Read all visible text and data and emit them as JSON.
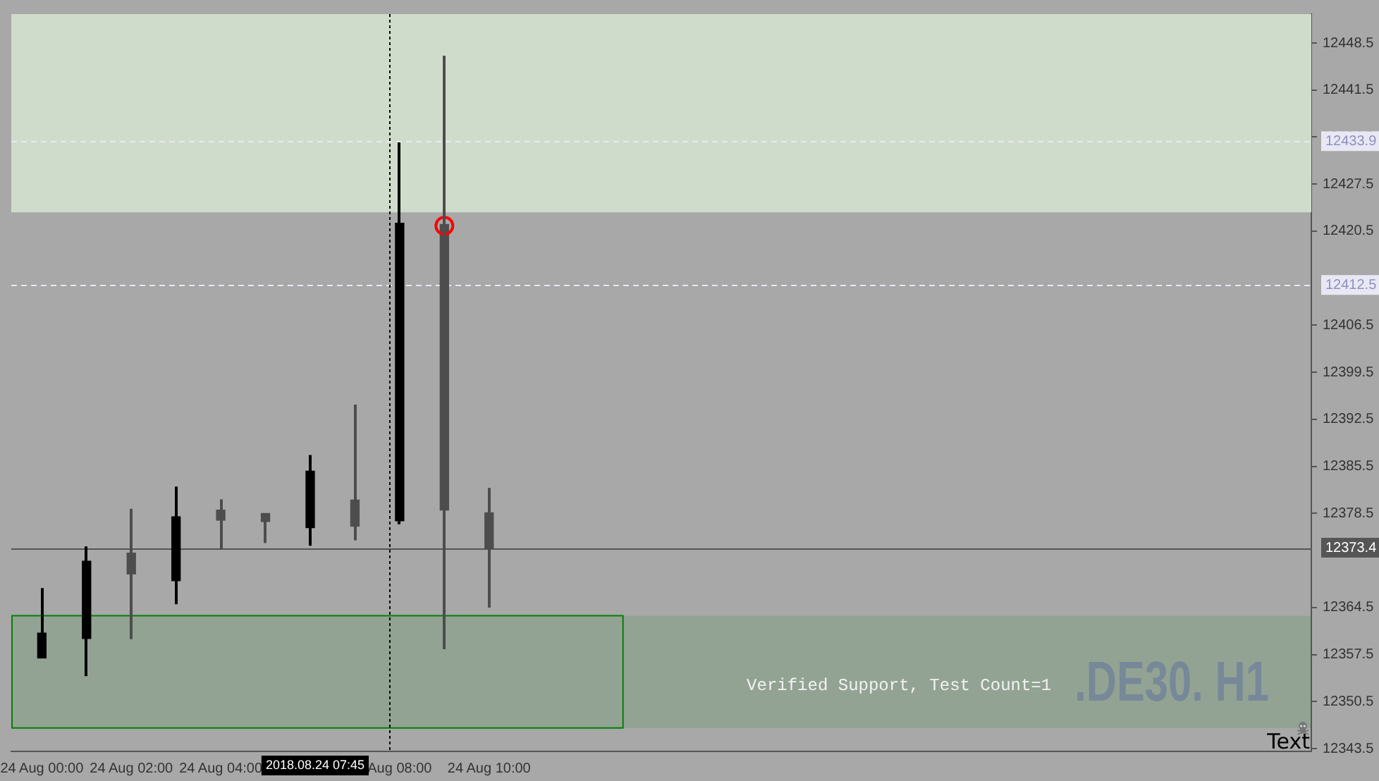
{
  "chart_data": {
    "type": "candlestick",
    "title": ".DE30. H1",
    "x": [
      "2018-08-24T00:00",
      "2018-08-24T01:00",
      "2018-08-24T02:00",
      "2018-08-24T03:00",
      "2018-08-24T04:00",
      "2018-08-24T05:00",
      "2018-08-24T06:00",
      "2018-08-24T07:00",
      "2018-08-24T08:00",
      "2018-08-24T09:00",
      "2018-08-24T10:00"
    ],
    "ohlc": [
      [
        12357.0,
        12367.4,
        12357.0,
        12360.7
      ],
      [
        12359.9,
        12373.6,
        12354.3,
        12371.4
      ],
      [
        12372.6,
        12379.2,
        12359.8,
        12369.5
      ],
      [
        12368.5,
        12382.5,
        12365.0,
        12378.0
      ],
      [
        12379.0,
        12380.6,
        12373.1,
        12377.5
      ],
      [
        12378.5,
        12378.5,
        12374.1,
        12377.3
      ],
      [
        12376.4,
        12387.2,
        12373.7,
        12384.8
      ],
      [
        12380.5,
        12394.7,
        12374.5,
        12376.6
      ],
      [
        12377.4,
        12433.7,
        12376.9,
        12421.7
      ],
      [
        12421.5,
        12446.6,
        12358.3,
        12379.0
      ],
      [
        12378.6,
        12382.3,
        12364.5,
        12373.3
      ]
    ],
    "colors": [
      "#000000",
      "#000000",
      "#4d4d4d",
      "#000000",
      "#4d4d4d",
      "#4d4d4d",
      "#000000",
      "#4d4d4d",
      "#000000",
      "#4d4d4d",
      "#4d4d4d"
    ],
    "series": [
      {
        "type": "scatter",
        "x": [
          "2018-08-24T09:00"
        ],
        "values": [
          12421.3
        ],
        "color": "#ff0000",
        "marker": "circle"
      }
    ],
    "xlim": [
      "2018-08-23T23:19",
      "2018-08-25T04:23"
    ],
    "xticks": [
      {
        "value": "2018-08-24T00:00",
        "label": "24 Aug 00:00"
      },
      {
        "value": "2018-08-24T02:00",
        "label": "24 Aug 02:00"
      },
      {
        "value": "2018-08-24T04:00",
        "label": "24 Aug 04:00"
      },
      {
        "value": "2018-08-24T08:00",
        "label": "Aug 08:00"
      },
      {
        "value": "2018-08-24T10:00",
        "label": "24 Aug 10:00"
      }
    ],
    "ylim": [
      12343.1,
      12452.8
    ],
    "yticks": [
      12343.5,
      12350.5,
      12357.5,
      12364.5,
      12378.5,
      12385.5,
      12392.5,
      12399.5,
      12406.5,
      12420.5,
      12427.5,
      12434.5,
      12441.5,
      12448.5
    ],
    "ref_lines": [
      {
        "axis": "y",
        "value": 12433.9,
        "label": "12433.9",
        "color": "#e8e8f4",
        "line_style": "dashed"
      },
      {
        "axis": "y",
        "value": 12412.5,
        "label": "12412.5",
        "color": "#e8e8f4",
        "line_style": "dashed"
      },
      {
        "axis": "y",
        "value": 12373.4,
        "label": "12373.4",
        "color": "#555555",
        "line_style": "solid"
      },
      {
        "axis": "x",
        "value": "2018-08-24T07:45",
        "label": "2018.08.24 07:45",
        "color": "#000000",
        "line_style": "dotted"
      }
    ],
    "bands": [
      {
        "axis": "y",
        "from": 12423.3,
        "to": 12452.8,
        "color": "#d0dccb"
      },
      {
        "axis": "y",
        "from": 12346.6,
        "to": 12363.3,
        "label": "Verified Support, Test Count=1",
        "color": "#008000"
      }
    ],
    "annotations": [
      "Text"
    ]
  }
}
